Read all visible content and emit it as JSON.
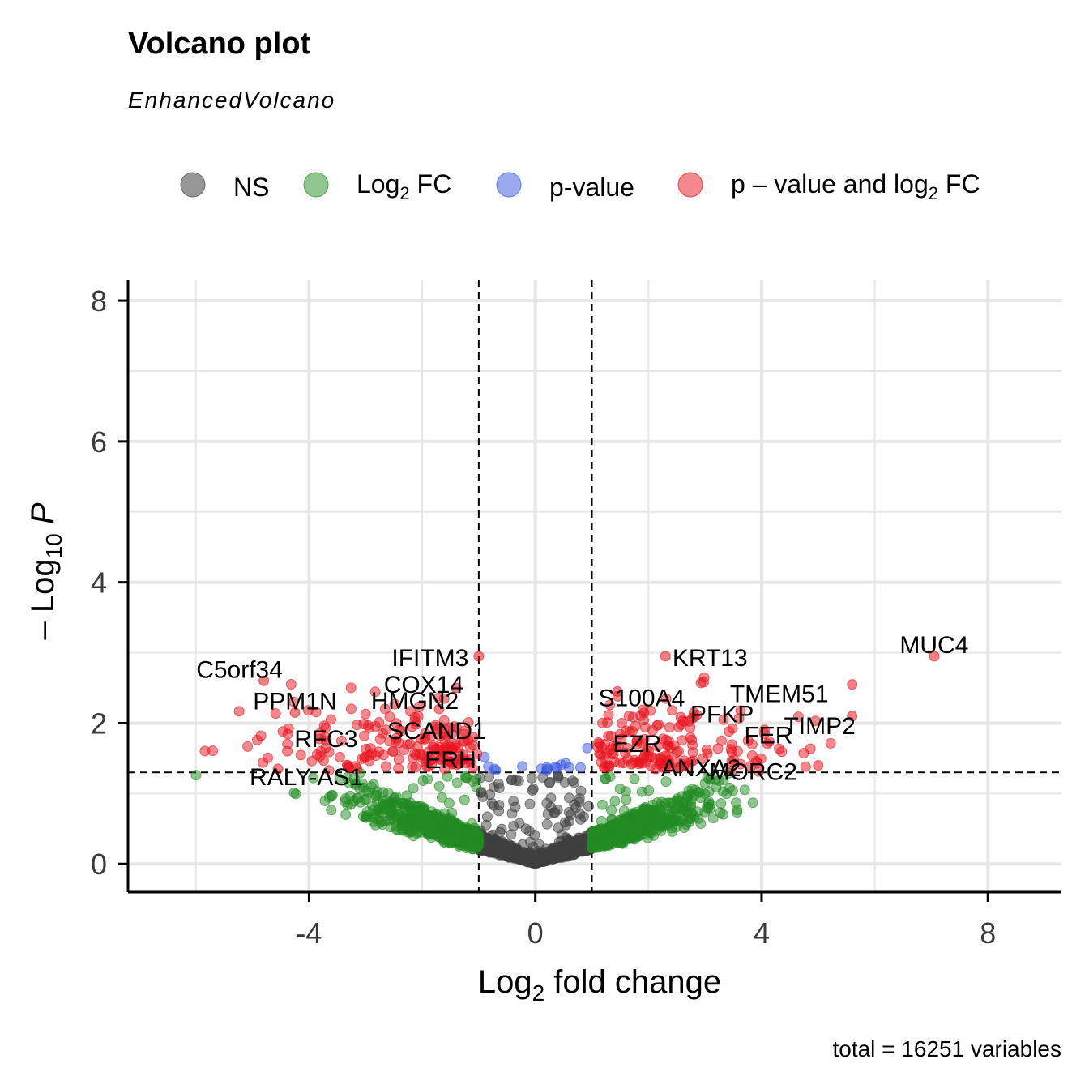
{
  "chart_data": {
    "type": "scatter",
    "title": "Volcano plot",
    "subtitle": "EnhancedVolcano",
    "caption": "total = 16251 variables",
    "xlabel": "Log2 fold change",
    "ylabel": "-Log10 P",
    "xlim": [
      -7.2,
      9.3
    ],
    "ylim": [
      -0.4,
      8.3
    ],
    "x_ticks": [
      -4,
      0,
      4,
      8
    ],
    "x_tick_labels": [
      "-4",
      "0",
      "4",
      "8"
    ],
    "y_ticks": [
      0,
      2,
      4,
      6,
      8
    ],
    "y_tick_labels": [
      "0",
      "2",
      "4",
      "6",
      "8"
    ],
    "grid": true,
    "cutoffs": {
      "log2fc": [
        -1,
        1
      ],
      "neg_log10_p": 1.3
    },
    "legend": {
      "position": "top",
      "items": [
        {
          "key": "ns",
          "label": "NS",
          "color": "#404040"
        },
        {
          "key": "fc",
          "label": "Log2 FC",
          "color": "#228b22"
        },
        {
          "key": "p",
          "label": "p-value",
          "color": "#3755e0"
        },
        {
          "key": "both",
          "label": "p – value and log2 FC",
          "color": "#e8141e"
        }
      ]
    },
    "highlighted_points": [
      {
        "label": "MUC4",
        "x": 7.05,
        "y": 2.95
      },
      {
        "label": "C5orf34",
        "x": -4.8,
        "y": 2.6
      },
      {
        "label": "PPM1N",
        "x": -4.25,
        "y": 2.15
      },
      {
        "label": "RALY-AS1",
        "x": -4.55,
        "y": 1.35
      },
      {
        "label": "RFC3",
        "x": -3.7,
        "y": 1.75
      },
      {
        "label": "IFITM3",
        "x": -1.0,
        "y": 2.95
      },
      {
        "label": "COX14",
        "x": -1.4,
        "y": 2.5
      },
      {
        "label": "HMGN2",
        "x": -1.7,
        "y": 2.2
      },
      {
        "label": "SCAND1",
        "x": -1.1,
        "y": 1.8
      },
      {
        "label": "ERH",
        "x": -1.5,
        "y": 1.45
      },
      {
        "label": "KRT13",
        "x": 2.3,
        "y": 2.95
      },
      {
        "label": "S100A4",
        "x": 1.45,
        "y": 2.45
      },
      {
        "label": "PFKP",
        "x": 2.8,
        "y": 2.15
      },
      {
        "label": "EZR",
        "x": 1.8,
        "y": 1.75
      },
      {
        "label": "ANXA2",
        "x": 2.5,
        "y": 1.45
      },
      {
        "label": "TMEM51",
        "x": 5.6,
        "y": 2.55
      },
      {
        "label": "TIMP2",
        "x": 5.6,
        "y": 2.1
      },
      {
        "label": "FER",
        "x": 4.05,
        "y": 1.85
      },
      {
        "label": "MORC2",
        "x": 5.0,
        "y": 1.4
      }
    ]
  }
}
